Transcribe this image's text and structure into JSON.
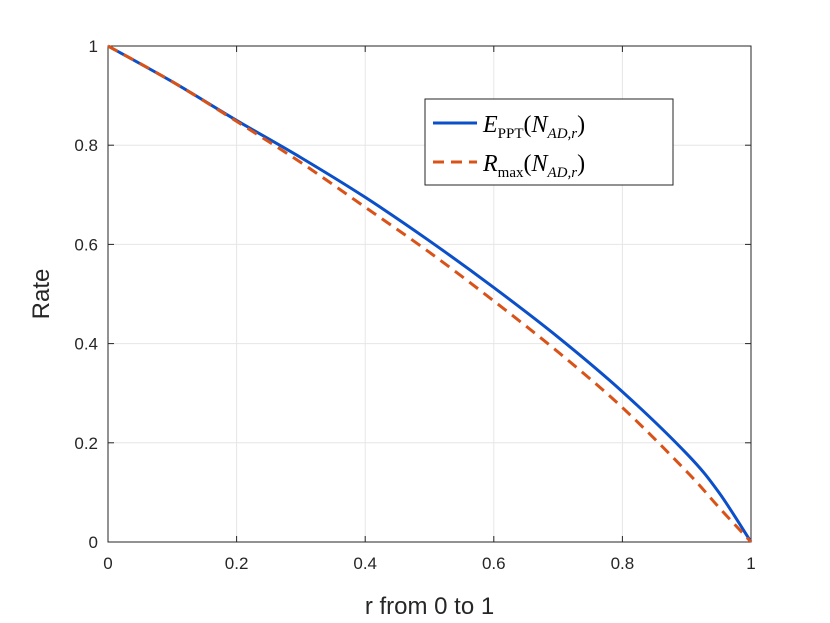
{
  "chart_data": {
    "type": "line",
    "xlabel": "r from 0 to 1",
    "ylabel": "Rate",
    "xlim": [
      0,
      1
    ],
    "ylim": [
      0,
      1
    ],
    "xticks": [
      "0",
      "0.2",
      "0.4",
      "0.6",
      "0.8",
      "1"
    ],
    "yticks": [
      "0",
      "0.2",
      "0.4",
      "0.6",
      "0.8",
      "1"
    ],
    "grid": true,
    "legend_position": "top-right",
    "series": [
      {
        "name": "E_PPT(N_AD,r)",
        "legend_main": "E",
        "legend_sub": "PPT",
        "legend_arg_main": "N",
        "legend_arg_sub": "AD,r",
        "color": "#0b4fc9",
        "style": "solid",
        "x": [
          0,
          0.1,
          0.2,
          0.3,
          0.4,
          0.5,
          0.6,
          0.7,
          0.8,
          0.9,
          0.95,
          1.0
        ],
        "y": [
          1.0,
          0.928,
          0.85,
          0.775,
          0.695,
          0.607,
          0.513,
          0.413,
          0.303,
          0.178,
          0.1,
          0.0
        ]
      },
      {
        "name": "R_max(N_AD,r)",
        "legend_main": "R",
        "legend_sub": "max",
        "legend_arg_main": "N",
        "legend_arg_sub": "AD,r",
        "color": "#d95319",
        "style": "dashed",
        "x": [
          0,
          0.1,
          0.2,
          0.3,
          0.4,
          0.5,
          0.6,
          0.7,
          0.8,
          0.9,
          0.95,
          1.0
        ],
        "y": [
          1.0,
          0.928,
          0.848,
          0.765,
          0.675,
          0.584,
          0.486,
          0.383,
          0.271,
          0.142,
          0.07,
          0.0
        ]
      }
    ]
  }
}
